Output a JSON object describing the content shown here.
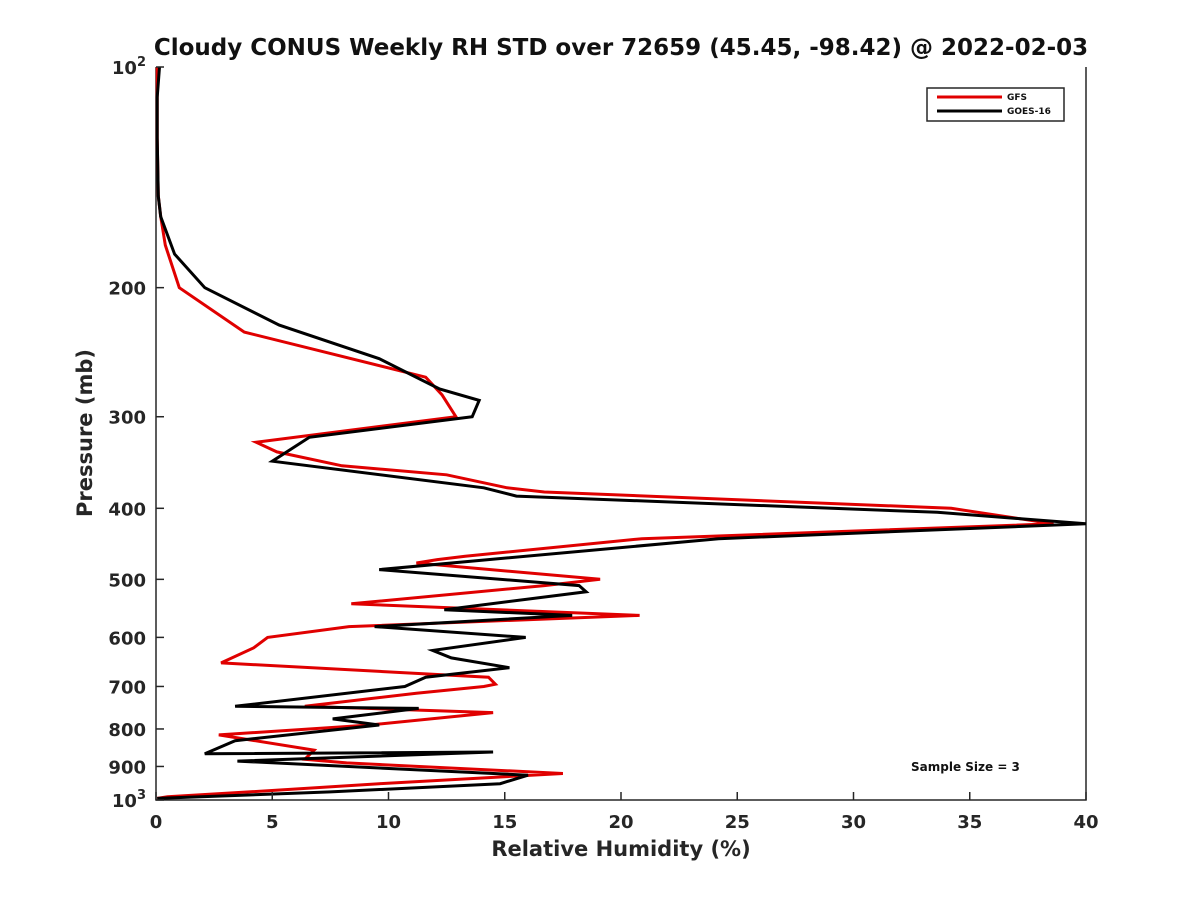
{
  "chart_data": {
    "type": "line",
    "title": "Cloudy CONUS Weekly RH STD over 72659 (45.45, -98.42) @ 2022-02-03",
    "xlabel": "Relative Humidity (%)",
    "ylabel": "Pressure (mb)",
    "xlim": [
      0,
      40
    ],
    "ylim": [
      100,
      1000
    ],
    "y_scale": "log",
    "y_reversed": true,
    "x_ticks": [
      "0",
      "5",
      "10",
      "15",
      "20",
      "25",
      "30",
      "35",
      "40"
    ],
    "y_ticks": [
      {
        "value": 100,
        "base": "10",
        "exp": "2"
      },
      {
        "value": 200,
        "label": "200"
      },
      {
        "value": 300,
        "label": "300"
      },
      {
        "value": 400,
        "label": "400"
      },
      {
        "value": 500,
        "label": "500"
      },
      {
        "value": 600,
        "label": "600"
      },
      {
        "value": 700,
        "label": "700"
      },
      {
        "value": 800,
        "label": "800"
      },
      {
        "value": 900,
        "label": "900"
      },
      {
        "value": 1000,
        "base": "10",
        "exp": "3"
      }
    ],
    "grid": false,
    "legend_position": "top-right",
    "annotation": "Sample Size = 3",
    "series": [
      {
        "name": "GFS",
        "color": "#e00000",
        "points": [
          [
            0.05,
            100
          ],
          [
            0.05,
            110
          ],
          [
            0.05,
            125
          ],
          [
            0.1,
            150
          ],
          [
            0.2,
            160
          ],
          [
            0.4,
            175
          ],
          [
            1.0,
            200
          ],
          [
            3.8,
            230
          ],
          [
            11.6,
            265
          ],
          [
            12.3,
            280
          ],
          [
            12.9,
            300
          ],
          [
            4.3,
            325
          ],
          [
            5.2,
            335
          ],
          [
            8.0,
            350
          ],
          [
            12.5,
            360
          ],
          [
            15.1,
            375
          ],
          [
            16.7,
            380
          ],
          [
            34.2,
            400
          ],
          [
            38.6,
            420
          ],
          [
            20.9,
            440
          ],
          [
            13.3,
            465
          ],
          [
            12.1,
            470
          ],
          [
            11.2,
            475
          ],
          [
            19.1,
            500
          ],
          [
            16.7,
            510
          ],
          [
            8.4,
            540
          ],
          [
            20.8,
            560
          ],
          [
            8.3,
            580
          ],
          [
            4.8,
            600
          ],
          [
            4.2,
            620
          ],
          [
            2.8,
            650
          ],
          [
            14.3,
            680
          ],
          [
            14.6,
            695
          ],
          [
            14.1,
            700
          ],
          [
            11.2,
            715
          ],
          [
            6.4,
            745
          ],
          [
            14.5,
            760
          ],
          [
            9.2,
            790
          ],
          [
            2.7,
            815
          ],
          [
            6.8,
            855
          ],
          [
            6.4,
            880
          ],
          [
            8.2,
            890
          ],
          [
            17.5,
            920
          ],
          [
            9.6,
            950
          ],
          [
            4.0,
            975
          ],
          [
            0.5,
            990
          ],
          [
            0.05,
            995
          ]
        ]
      },
      {
        "name": "GOES-16",
        "color": "#000000",
        "points": [
          [
            0.15,
            100
          ],
          [
            0.05,
            110
          ],
          [
            0.05,
            125
          ],
          [
            0.1,
            150
          ],
          [
            0.2,
            160
          ],
          [
            0.8,
            180
          ],
          [
            2.1,
            200
          ],
          [
            5.3,
            225
          ],
          [
            9.6,
            250
          ],
          [
            12.2,
            275
          ],
          [
            13.9,
            285
          ],
          [
            13.6,
            300
          ],
          [
            6.6,
            320
          ],
          [
            5.0,
            345
          ],
          [
            14.1,
            375
          ],
          [
            15.5,
            385
          ],
          [
            33.6,
            405
          ],
          [
            40.0,
            420
          ],
          [
            24.2,
            440
          ],
          [
            9.6,
            485
          ],
          [
            18.2,
            510
          ],
          [
            18.5,
            520
          ],
          [
            12.4,
            550
          ],
          [
            17.9,
            560
          ],
          [
            9.4,
            580
          ],
          [
            15.9,
            600
          ],
          [
            11.9,
            625
          ],
          [
            12.7,
            640
          ],
          [
            15.2,
            660
          ],
          [
            11.6,
            680
          ],
          [
            10.7,
            700
          ],
          [
            3.4,
            745
          ],
          [
            11.3,
            750
          ],
          [
            7.6,
            775
          ],
          [
            9.6,
            790
          ],
          [
            3.4,
            830
          ],
          [
            2.1,
            865
          ],
          [
            14.5,
            860
          ],
          [
            3.5,
            885
          ],
          [
            16.0,
            925
          ],
          [
            14.8,
            950
          ],
          [
            7.5,
            975
          ],
          [
            0.05,
            995
          ]
        ]
      }
    ]
  }
}
